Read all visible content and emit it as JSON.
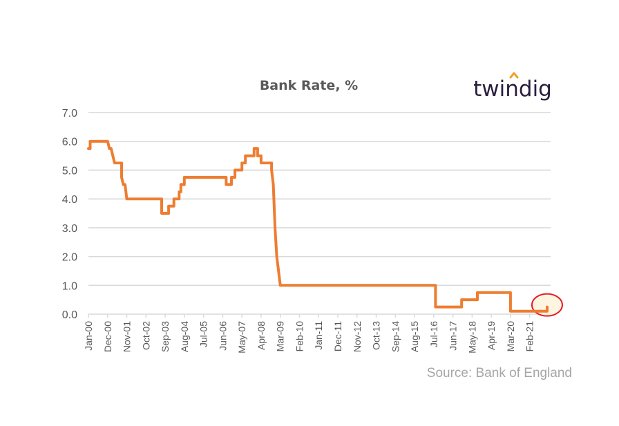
{
  "chart_data": {
    "type": "line",
    "title": "Bank Rate, %",
    "source": "Source: Bank of England",
    "brand": "twindig",
    "ylim": [
      0,
      7
    ],
    "yticks": [
      "0.0",
      "1.0",
      "2.0",
      "3.0",
      "4.0",
      "5.0",
      "6.0",
      "7.0"
    ],
    "xlim": [
      "2000-01",
      "2022-02"
    ],
    "xticks": [
      "Jan-00",
      "Dec-00",
      "Nov-01",
      "Oct-02",
      "Sep-03",
      "Aug-04",
      "Jul-05",
      "Jun-06",
      "May-07",
      "Apr-08",
      "Mar-09",
      "Feb-10",
      "Jan-11",
      "Dec-11",
      "Nov-12",
      "Oct-13",
      "Sep-14",
      "Aug-15",
      "Jul-16",
      "Jun-17",
      "May-18",
      "Apr-19",
      "Mar-20",
      "Feb-21"
    ],
    "grid": true,
    "colors": {
      "line": "#ed7d31",
      "highlight_ring": "#e31e24",
      "highlight_fill": "#fdf3dc",
      "logo_accent": "#f0a020"
    },
    "highlight": {
      "x": "2021-12",
      "y": 0.25
    },
    "series": [
      {
        "x": [
          "2000-01",
          "2000-02",
          "2000-12",
          "2001-01",
          "2001-02",
          "2001-03",
          "2001-04",
          "2001-05",
          "2001-08",
          "2001-09",
          "2001-10",
          "2001-11",
          "2003-02",
          "2003-07",
          "2003-11",
          "2004-02",
          "2004-05",
          "2004-06",
          "2004-08",
          "2005-08",
          "2006-08",
          "2006-11",
          "2007-01",
          "2007-05",
          "2007-07",
          "2007-12",
          "2008-02",
          "2008-04",
          "2008-10",
          "2008-11",
          "2008-12",
          "2009-01",
          "2009-02",
          "2009-03",
          "2016-08",
          "2017-11",
          "2018-08",
          "2020-03",
          "2021-12"
        ],
        "y": [
          5.75,
          6.0,
          6.0,
          5.75,
          5.75,
          5.5,
          5.25,
          5.25,
          4.75,
          4.5,
          4.5,
          4.0,
          4.0,
          3.5,
          3.75,
          4.0,
          4.25,
          4.5,
          4.75,
          4.75,
          4.5,
          4.75,
          5.0,
          5.25,
          5.5,
          5.75,
          5.5,
          5.25,
          5.0,
          4.5,
          3.0,
          2.0,
          1.5,
          1.0,
          0.25,
          0.5,
          0.75,
          0.1,
          0.25
        ]
      }
    ]
  }
}
